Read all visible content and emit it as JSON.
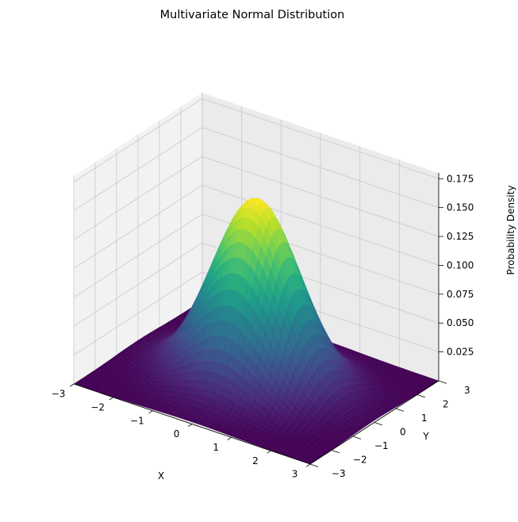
{
  "chart_data": {
    "type": "surface",
    "title": "Multivariate Normal Distribution",
    "xlabel": "X",
    "ylabel": "Y",
    "zlabel": "Probability Density",
    "x_range": [
      -3,
      3
    ],
    "y_range": [
      -3,
      3
    ],
    "z_range": [
      0,
      0.18
    ],
    "x_ticks": [
      "−3",
      "−2",
      "−1",
      "0",
      "1",
      "2",
      "3"
    ],
    "y_ticks": [
      "−3",
      "−2",
      "−1",
      "0",
      "1",
      "2",
      "3"
    ],
    "z_ticks": [
      "0.025",
      "0.050",
      "0.075",
      "0.100",
      "0.125",
      "0.150",
      "0.175"
    ],
    "distribution": {
      "mean": [
        0,
        0
      ],
      "covariance": [
        [
          1,
          0
        ],
        [
          0,
          1
        ]
      ],
      "peak_density": 0.159
    },
    "colormap": "viridis",
    "grid": true
  }
}
